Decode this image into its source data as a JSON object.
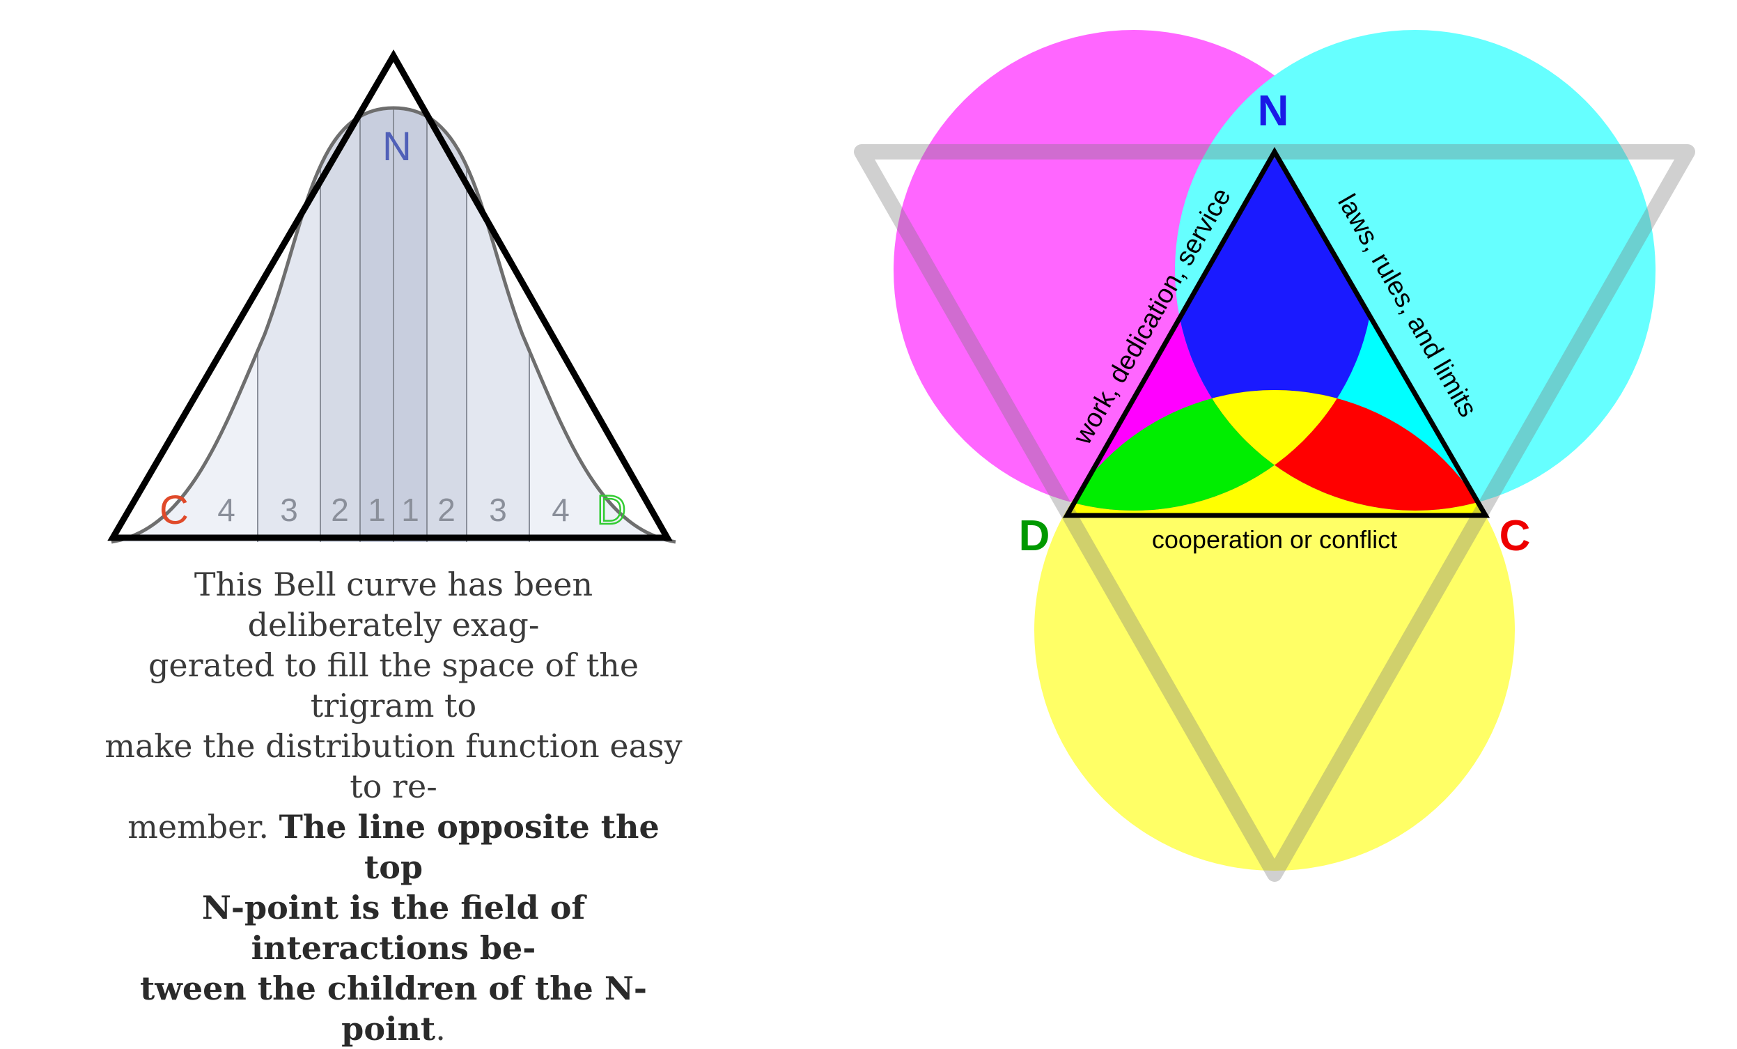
{
  "left_figure": {
    "apex_label": "N",
    "left_label": "C",
    "right_label": "D",
    "band_numbers": [
      "4",
      "3",
      "2",
      "1",
      "1",
      "2",
      "3",
      "4"
    ]
  },
  "caption": {
    "lines": [
      "This Bell curve has been deliberately exag-",
      "gerated to fill the space of the trigram to",
      "make the distribution function easy to re-"
    ],
    "line4_regular": "member. ",
    "line4_bold": "The line opposite the top",
    "bold_lines": [
      "N-point is the field of interactions be-"
    ],
    "line6_bold": "tween the children of the N-point",
    "line6_end": "."
  },
  "right_figure": {
    "vertex_top": "N",
    "vertex_left": "D",
    "vertex_right": "C",
    "edge_left_label": "work, dedication, service",
    "edge_right_label": "laws, rules, and limits",
    "edge_bottom_label": "cooperation or conflict",
    "colors": {
      "magenta": "#ff66ff",
      "cyan": "#66ffff",
      "yellow": "#ffff66",
      "blue": "#1a1aff",
      "green": "#00ee00",
      "red": "#ff0000",
      "n_label": "#1a1ae6",
      "d_label": "#009900",
      "c_label": "#ee0000"
    }
  }
}
